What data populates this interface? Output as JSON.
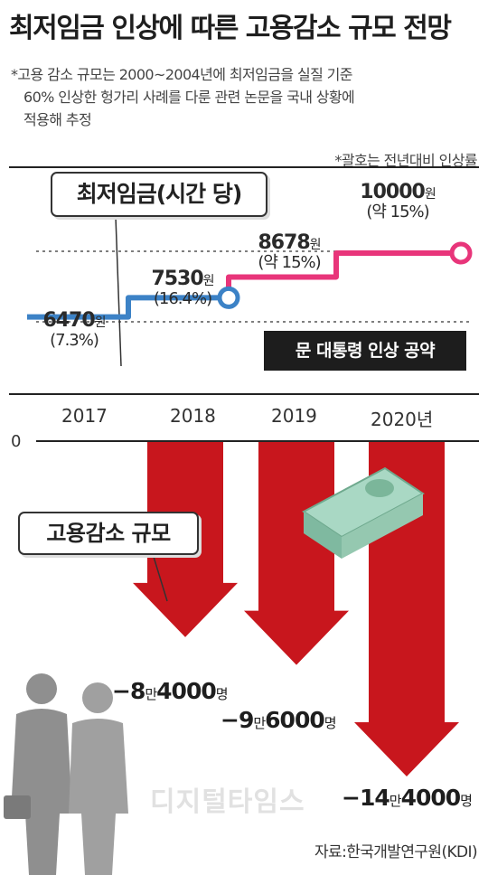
{
  "title": "최저임금 인상에 따른 고용감소 규모 전망",
  "note": {
    "line1": "*고용 감소 규모는 2000~2004년에 최저임금을 실질 기준",
    "line2": "60% 인상한 헝가리 사례를 다룬 관련 논문을 국내 상황에",
    "line3": "적용해 추정"
  },
  "paren_note": "*괄호는 전년대비 인상률",
  "wage_box_label": "최저임금(시간 당)",
  "employment_box_label": "고용감소 규모",
  "pledge_label": "문 대통령 인상 공약",
  "zero_label": "0",
  "source": "자료:한국개발연구원(KDI)",
  "watermark": "디지털타임스",
  "colors": {
    "actual_line": "#3c82c6",
    "projected_line": "#e8357a",
    "arrow": "#c8161d",
    "text": "#222222"
  },
  "chart_data": [
    {
      "type": "line",
      "categories": [
        "2017",
        "2018",
        "2019",
        "2020년"
      ],
      "values": [
        6470,
        7530,
        8678,
        10000
      ],
      "value_labels": [
        {
          "num": "6470",
          "unit": "원",
          "pct": "(7.3%)"
        },
        {
          "num": "7530",
          "unit": "원",
          "pct": "(16.4%)"
        },
        {
          "num": "8678",
          "unit": "원",
          "pct": "(약 15%)"
        },
        {
          "num": "10000",
          "unit": "원",
          "pct": "(약 15%)"
        }
      ],
      "series": [
        {
          "name": "최저임금(시간 당)",
          "segments": [
            "2017-2018 actual",
            "2019-2020 pledge"
          ]
        }
      ],
      "annotation": "문 대통령 인상 공약"
    },
    {
      "type": "bar",
      "categories": [
        "2018",
        "2019",
        "2020년"
      ],
      "values": [
        -84000,
        -96000,
        -144000
      ],
      "value_labels": [
        {
          "prefix": "−8",
          "mid": "만",
          "rest": "4000",
          "unit": "명"
        },
        {
          "prefix": "−9",
          "mid": "만",
          "rest": "6000",
          "unit": "명"
        },
        {
          "prefix": "−14",
          "mid": "만",
          "rest": "4000",
          "unit": "명"
        }
      ],
      "series": [
        {
          "name": "고용감소 규모"
        }
      ],
      "ylim": [
        -144000,
        0
      ]
    }
  ]
}
